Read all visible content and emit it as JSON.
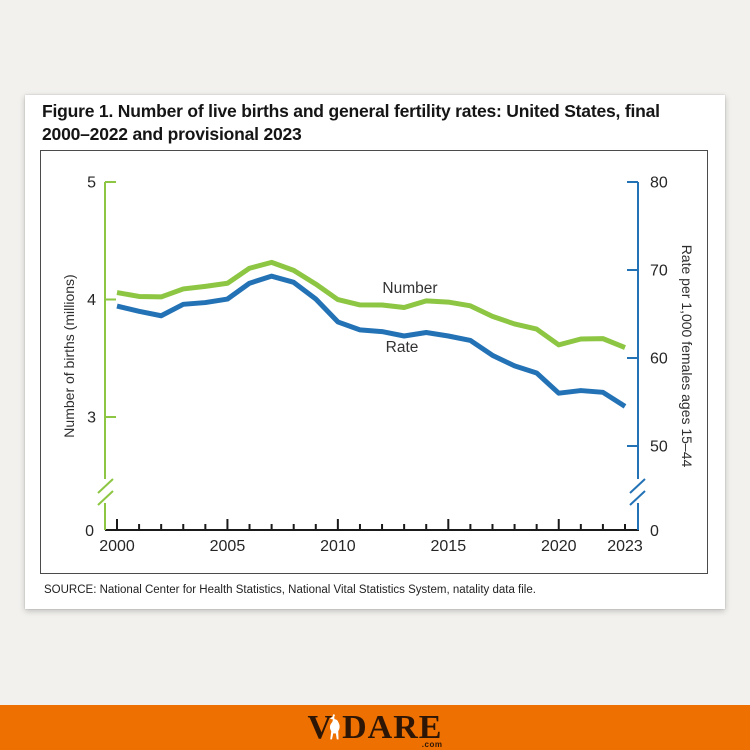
{
  "page": {
    "background": "#f2f1ee",
    "card_background": "#ffffff"
  },
  "figure": {
    "title_line1": "Figure 1. Number of live births and general fertility rates: United States, final",
    "title_line2": "2000–2022 and provisional 2023",
    "source": "SOURCE: National Center for Health Statistics, National Vital Statistics System, natality data file."
  },
  "chart_data": {
    "type": "line",
    "x": [
      2000,
      2001,
      2002,
      2003,
      2004,
      2005,
      2006,
      2007,
      2008,
      2009,
      2010,
      2011,
      2012,
      2013,
      2014,
      2015,
      2016,
      2017,
      2018,
      2019,
      2020,
      2021,
      2022,
      2023
    ],
    "series": [
      {
        "name": "Number",
        "axis": "left",
        "color": "#8dc642",
        "values": [
          4.059,
          4.026,
          4.022,
          4.09,
          4.112,
          4.138,
          4.266,
          4.316,
          4.248,
          4.131,
          3.999,
          3.954,
          3.953,
          3.932,
          3.988,
          3.978,
          3.946,
          3.856,
          3.792,
          3.748,
          3.614,
          3.664,
          3.667,
          3.591
        ]
      },
      {
        "name": "Rate",
        "axis": "right",
        "color": "#2372b5",
        "values": [
          65.9,
          65.3,
          64.8,
          66.1,
          66.3,
          66.7,
          68.5,
          69.3,
          68.6,
          66.7,
          64.1,
          63.2,
          63.0,
          62.5,
          62.9,
          62.5,
          62.0,
          60.3,
          59.1,
          58.3,
          56.0,
          56.3,
          56.1,
          54.5
        ]
      }
    ],
    "left_axis": {
      "label": "Number of births (millions)",
      "tick_values": [
        5,
        4,
        3
      ],
      "zero_label": "0",
      "axis_break": true,
      "color": "#8dc642",
      "range_shown": [
        3,
        5
      ]
    },
    "right_axis": {
      "label": "Rate per 1,000 females ages 15–44",
      "tick_values": [
        80,
        70,
        60,
        50
      ],
      "zero_label": "0",
      "axis_break": true,
      "color": "#2372b5",
      "range_shown": [
        50,
        80
      ]
    },
    "x_axis": {
      "labeled_years": [
        2000,
        2005,
        2010,
        2015,
        2020,
        2023
      ],
      "major_tick_years": [
        2000,
        2005,
        2010,
        2015,
        2020
      ],
      "color": "#1a1a1a"
    },
    "legend_position": "inline-labels",
    "grid": false
  },
  "branding": {
    "v": "V",
    "dare": "DARE",
    "tld": ".com",
    "bar_color": "#ed7000",
    "letter_color": "#2e1607"
  }
}
